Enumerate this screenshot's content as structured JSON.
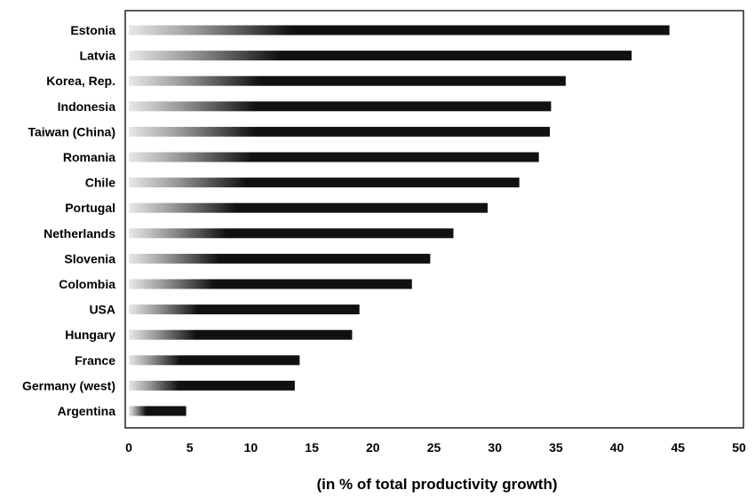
{
  "chart_data": {
    "type": "bar",
    "orientation": "horizontal",
    "categories": [
      "Estonia",
      "Latvia",
      "Korea, Rep.",
      "Indonesia",
      "Taiwan (China)",
      "Romania",
      "Chile",
      "Portugal",
      "Netherlands",
      "Slovenia",
      "Colombia",
      "USA",
      "Hungary",
      "France",
      "Germany (west)",
      "Argentina"
    ],
    "values": [
      44.3,
      41.2,
      35.8,
      34.6,
      34.5,
      33.6,
      32.0,
      29.4,
      26.6,
      24.7,
      23.2,
      18.9,
      18.3,
      14.0,
      13.6,
      4.7
    ],
    "title": "",
    "xlabel": "(in % of total productivity growth)",
    "ylabel": "",
    "xlim": [
      0,
      50
    ],
    "xticks": [
      0,
      5,
      10,
      15,
      20,
      25,
      30,
      35,
      40,
      45,
      50
    ],
    "grid": false,
    "legend": "none",
    "colors": {
      "bar": "#111111",
      "bar_fade": "#e8e8e8",
      "axis": "#000000"
    }
  }
}
